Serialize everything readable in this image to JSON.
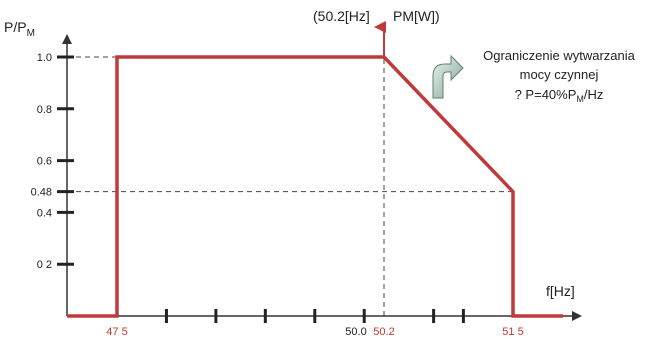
{
  "chart_data": {
    "type": "line",
    "ylabel": "P/P",
    "ylabel_sub": "M",
    "xlabel": "f[Hz]",
    "series": [
      {
        "color": "#c0393b",
        "points": [
          [
            47.0,
            0.0
          ],
          [
            47.5,
            0.0
          ],
          [
            47.5,
            1.0
          ],
          [
            50.2,
            1.0
          ],
          [
            51.5,
            0.48
          ],
          [
            51.5,
            0.0
          ],
          [
            52.0,
            0.0
          ]
        ]
      }
    ],
    "y_ticks": [
      {
        "value": 1.0,
        "label": "1.0"
      },
      {
        "value": 0.8,
        "label": "0.8"
      },
      {
        "value": 0.6,
        "label": "0.6"
      },
      {
        "value": 0.48,
        "label": "0.48"
      },
      {
        "value": 0.4,
        "label": "0.4"
      },
      {
        "value": 0.2,
        "label": "0 2"
      }
    ],
    "x_tick_marks": [
      48.0,
      48.5,
      49.0,
      49.5,
      50.0,
      50.7,
      51.0
    ],
    "x_labels": [
      {
        "value": 47.5,
        "label": "47 5",
        "color": "red"
      },
      {
        "value": 50.0,
        "label": "50.0",
        "color": "black"
      },
      {
        "value": 50.2,
        "label": "50.2",
        "color": "red"
      },
      {
        "value": 51.5,
        "label": "51 5",
        "color": "red"
      }
    ],
    "guide_lines": [
      {
        "kind": "h",
        "y": 1.0,
        "x_from": 47.0,
        "x_to": 50.2
      },
      {
        "kind": "h",
        "y": 0.48,
        "x_from": 47.0,
        "x_to": 51.5
      },
      {
        "kind": "v",
        "x": 50.2,
        "y_from": 0.0,
        "y_to": 1.0
      }
    ],
    "point_label_parts": [
      "(50.2[Hz]",
      "PM[W])"
    ],
    "annotation_lines": [
      "Ograniczenie wytwarzania",
      "mocy czynnej"
    ],
    "annotation_formula": {
      "prefix": "? P=40%P",
      "sub": "M",
      "suffix": "/Hz"
    },
    "xlim": [
      47.0,
      52.0
    ],
    "ylim": [
      0.0,
      1.0
    ],
    "grid": false
  }
}
